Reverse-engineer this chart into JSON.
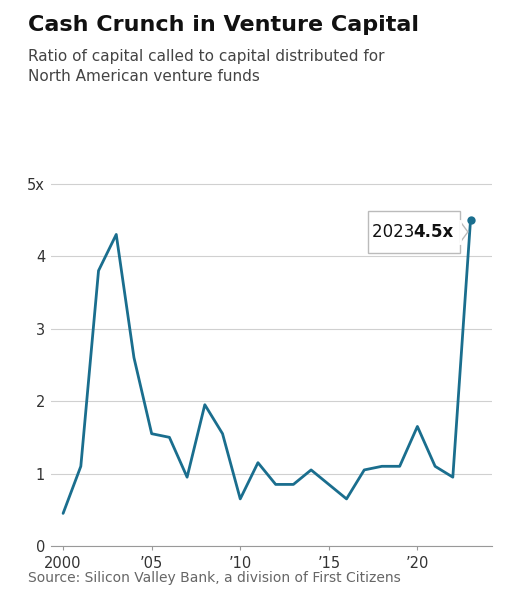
{
  "title": "Cash Crunch in Venture Capital",
  "subtitle": "Ratio of capital called to capital distributed for\nNorth American venture funds",
  "source": "Source: Silicon Valley Bank, a division of First Citizens",
  "years": [
    2000,
    2001,
    2002,
    2003,
    2004,
    2005,
    2006,
    2007,
    2008,
    2009,
    2010,
    2011,
    2012,
    2013,
    2014,
    2015,
    2016,
    2017,
    2018,
    2019,
    2020,
    2021,
    2022,
    2023
  ],
  "values": [
    0.45,
    1.1,
    3.8,
    4.3,
    2.6,
    1.55,
    1.5,
    0.95,
    1.95,
    1.55,
    0.65,
    1.15,
    0.85,
    0.85,
    1.05,
    0.85,
    0.65,
    1.05,
    1.1,
    1.1,
    1.65,
    1.1,
    0.95,
    4.5
  ],
  "line_color": "#1a6e8e",
  "dot_color": "#1a6e8e",
  "background_color": "#ffffff",
  "grid_color": "#d0d0d0",
  "yticks": [
    0,
    1,
    2,
    3,
    4,
    5
  ],
  "ytick_labels": [
    "0",
    "1",
    "2",
    "3",
    "4",
    "5x"
  ],
  "xtick_positions": [
    2000,
    2005,
    2010,
    2015,
    2020
  ],
  "xtick_labels": [
    "2000",
    "’05",
    "’10",
    "’15",
    "’20"
  ],
  "ylim": [
    0,
    5.3
  ],
  "xlim": [
    1999.3,
    2024.2
  ],
  "title_fontsize": 16,
  "subtitle_fontsize": 11,
  "source_fontsize": 10,
  "axis_fontsize": 10.5
}
